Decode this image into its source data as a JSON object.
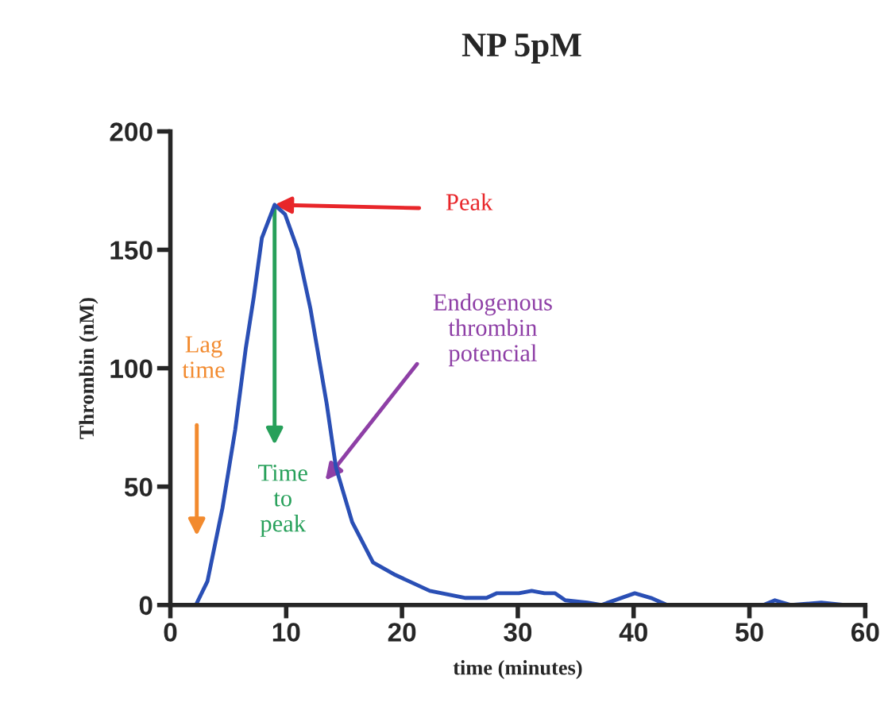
{
  "chart_data": {
    "type": "line",
    "title": "NP 5pM",
    "xlabel": "time (minutes)",
    "ylabel": "Thrombin (nM)",
    "x": [
      2.2,
      2.9,
      3.2,
      4.5,
      5.6,
      6.5,
      7.2,
      7.9,
      9.0,
      9.9,
      11.0,
      12.1,
      13.5,
      14.3,
      15.7,
      17.5,
      19.3,
      22.4,
      25.5,
      27.3,
      28.2,
      30.1,
      31.2,
      32.3,
      33.2,
      34.1,
      36.0,
      37.2,
      40.1,
      41.5,
      42.9,
      47,
      51.2,
      52.2,
      53.6,
      56.2,
      58.2
    ],
    "values": [
      0,
      7,
      10,
      41,
      74,
      108,
      130,
      155,
      169,
      165,
      150,
      125,
      85,
      58,
      35,
      18,
      13,
      6,
      3,
      3,
      5,
      5,
      6,
      5,
      5,
      2,
      1,
      0,
      5,
      3,
      0,
      null,
      0,
      2,
      0,
      1,
      0
    ],
    "color": "#2a4fb5",
    "xlim": [
      0,
      60
    ],
    "ylim": [
      0,
      200
    ],
    "xticks": [
      0,
      10,
      20,
      30,
      40,
      50,
      60
    ],
    "yticks": [
      0,
      50,
      100,
      150,
      200
    ],
    "annotations": [
      {
        "text": "Peak",
        "x": 9.0,
        "y": 169
      },
      "Lag\ntime",
      {
        "text": "Time\nto\npeak",
        "x": 9.0,
        "y": 167.5
      },
      "Endogenous\nthrombin\npotencial"
    ]
  }
}
